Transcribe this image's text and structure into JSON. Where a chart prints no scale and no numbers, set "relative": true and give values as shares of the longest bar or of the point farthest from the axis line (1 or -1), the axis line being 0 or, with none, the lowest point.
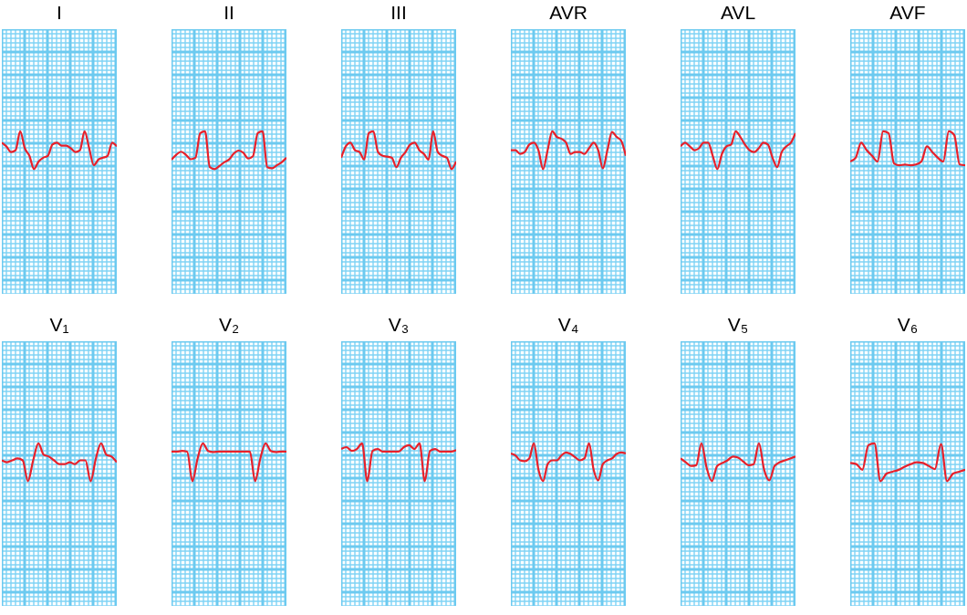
{
  "chart_data": [
    {
      "type": "line",
      "title": "I",
      "relative": true,
      "grid": true,
      "tick_labels": false,
      "categories": [
        null,
        null,
        null,
        null,
        null,
        null,
        null,
        null,
        null,
        null,
        null,
        null,
        null,
        null,
        null,
        null,
        null,
        null,
        null,
        null,
        null,
        null,
        null,
        null,
        null,
        null
      ],
      "series": [
        {
          "color": "#e8202a",
          "values": [
            0.7,
            0.6,
            0.45,
            0.5,
            1.0,
            0.55,
            0.35,
            0.0,
            0.2,
            0.3,
            0.35,
            0.65,
            0.7,
            0.62,
            0.62,
            0.55,
            0.45,
            0.5,
            1.0,
            0.55,
            0.1,
            0.25,
            0.3,
            0.35,
            0.7,
            0.6
          ]
        }
      ]
    },
    {
      "type": "line",
      "title": "II",
      "relative": true,
      "grid": true,
      "tick_labels": false,
      "categories": [
        null,
        null,
        null,
        null,
        null,
        null,
        null,
        null,
        null,
        null,
        null,
        null,
        null,
        null,
        null,
        null,
        null,
        null,
        null,
        null,
        null,
        null,
        null,
        null,
        null
      ],
      "series": [
        {
          "color": "#e8202a",
          "values": [
            0.25,
            0.38,
            0.46,
            0.38,
            0.26,
            0.3,
            0.95,
            1,
            0.05,
            0,
            0.08,
            0.18,
            0.25,
            0.41,
            0.49,
            0.43,
            0.28,
            0.34,
            0.95,
            1,
            0.05,
            0.02,
            0.1,
            0.18,
            0.3
          ]
        }
      ]
    },
    {
      "type": "line",
      "title": "III",
      "relative": true,
      "grid": true,
      "tick_labels": false,
      "categories": [
        null,
        null,
        null,
        null,
        null,
        null,
        null,
        null,
        null,
        null,
        null,
        null,
        null,
        null,
        null,
        null,
        null,
        null,
        null,
        null,
        null,
        null,
        null,
        null,
        null,
        null
      ],
      "series": [
        {
          "color": "#e8202a",
          "values": [
            0.3,
            0.6,
            0.7,
            0.5,
            0.45,
            0.25,
            0.95,
            1.0,
            0.45,
            0.35,
            0.33,
            0.3,
            0.05,
            0.3,
            0.45,
            0.65,
            0.7,
            0.5,
            0.4,
            0.25,
            1.0,
            0.45,
            0.35,
            0.3,
            0.0,
            0.2
          ]
        }
      ]
    },
    {
      "type": "line",
      "title": "AVR",
      "relative": true,
      "grid": true,
      "tick_labels": false,
      "categories": [
        null,
        null,
        null,
        null,
        null,
        null,
        null,
        null,
        null,
        null,
        null,
        null,
        null,
        null,
        null,
        null,
        null,
        null,
        null,
        null,
        null,
        null,
        null,
        null,
        null,
        null
      ],
      "series": [
        {
          "color": "#e8202a",
          "values": [
            0.5,
            0.5,
            0.4,
            0.45,
            0.65,
            0.7,
            0.5,
            0.0,
            0.5,
            1.0,
            0.85,
            0.8,
            0.7,
            0.4,
            0.45,
            0.45,
            0.4,
            0.55,
            0.7,
            0.5,
            0.02,
            0.5,
            0.98,
            0.85,
            0.75,
            0.35
          ]
        }
      ]
    },
    {
      "type": "line",
      "title": "AVL",
      "relative": true,
      "grid": true,
      "tick_labels": false,
      "categories": [
        null,
        null,
        null,
        null,
        null,
        null,
        null,
        null,
        null,
        null,
        null,
        null,
        null,
        null,
        null,
        null,
        null,
        null,
        null,
        null,
        null,
        null,
        null,
        null,
        null,
        null
      ],
      "series": [
        {
          "color": "#e8202a",
          "values": [
            0.6,
            0.7,
            0.6,
            0.5,
            0.55,
            0.7,
            0.7,
            0.35,
            0.0,
            0.4,
            0.6,
            0.65,
            1.0,
            0.85,
            0.65,
            0.5,
            0.45,
            0.55,
            0.7,
            0.65,
            0.3,
            0.05,
            0.45,
            0.6,
            0.7,
            0.95
          ]
        }
      ]
    },
    {
      "type": "line",
      "title": "AVF",
      "relative": true,
      "grid": true,
      "tick_labels": false,
      "categories": [
        null,
        null,
        null,
        null,
        null,
        null,
        null,
        null,
        null,
        null,
        null,
        null,
        null,
        null,
        null,
        null,
        null,
        null,
        null,
        null,
        null,
        null
      ],
      "series": [
        {
          "color": "#e8202a",
          "values": [
            0.2,
            0.3,
            0.7,
            0.5,
            0.35,
            0.2,
            1.0,
            0.95,
            0.15,
            0.1,
            0.12,
            0.1,
            0.12,
            0.2,
            0.6,
            0.45,
            0.3,
            0.2,
            1.0,
            0.9,
            0.12,
            0.1
          ]
        }
      ]
    },
    {
      "type": "line",
      "title": "V₁",
      "relative": true,
      "grid": true,
      "tick_labels": false,
      "categories": [
        null,
        null,
        null,
        null,
        null,
        null,
        null,
        null,
        null,
        null,
        null,
        null,
        null,
        null,
        null,
        null,
        null,
        null,
        null,
        null,
        null,
        null,
        null
      ],
      "series": [
        {
          "color": "#e8202a",
          "values": [
            0.55,
            0.5,
            0.55,
            0.6,
            0.55,
            0.0,
            0.55,
            1.0,
            0.7,
            0.65,
            0.55,
            0.45,
            0.45,
            0.5,
            0.45,
            0.55,
            0.55,
            0.0,
            0.6,
            1.0,
            0.7,
            0.65,
            0.5
          ]
        }
      ]
    },
    {
      "type": "line",
      "title": "V₂",
      "relative": true,
      "grid": true,
      "tick_labels": false,
      "categories": [
        null,
        null,
        null,
        null,
        null,
        null,
        null,
        null,
        null,
        null,
        null,
        null,
        null,
        null,
        null,
        null,
        null,
        null,
        null,
        null,
        null,
        null,
        null
      ],
      "series": [
        {
          "color": "#e8202a",
          "values": [
            0.78,
            0.78,
            0.8,
            0.78,
            0.0,
            0.6,
            1.0,
            0.8,
            0.77,
            0.78,
            0.78,
            0.78,
            0.78,
            0.78,
            0.78,
            0.78,
            0.0,
            0.6,
            1.0,
            0.8,
            0.77,
            0.78,
            0.78
          ]
        }
      ]
    },
    {
      "type": "line",
      "title": "V₃",
      "relative": true,
      "grid": true,
      "tick_labels": false,
      "categories": [
        null,
        null,
        null,
        null,
        null,
        null,
        null,
        null,
        null,
        null,
        null,
        null,
        null,
        null,
        null,
        null,
        null,
        null,
        null,
        null,
        null,
        null,
        null
      ],
      "series": [
        {
          "color": "#e8202a",
          "values": [
            0.85,
            0.9,
            0.8,
            0.85,
            1.0,
            0.0,
            0.8,
            0.85,
            0.78,
            0.78,
            0.78,
            0.78,
            0.9,
            0.95,
            0.85,
            1.0,
            0.0,
            0.8,
            0.85,
            0.78,
            0.78,
            0.78,
            0.82
          ]
        }
      ]
    },
    {
      "type": "line",
      "title": "V₄",
      "relative": true,
      "grid": true,
      "tick_labels": false,
      "categories": [
        null,
        null,
        null,
        null,
        null,
        null,
        null,
        null,
        null,
        null,
        null,
        null,
        null,
        null,
        null,
        null,
        null,
        null,
        null,
        null,
        null,
        null,
        null,
        null,
        null,
        null
      ],
      "series": [
        {
          "color": "#e8202a",
          "values": [
            0.73,
            0.68,
            0.55,
            0.53,
            0.6,
            1.0,
            0.3,
            0.0,
            0.45,
            0.55,
            0.55,
            0.68,
            0.76,
            0.72,
            0.63,
            0.55,
            0.6,
            1.0,
            0.3,
            0.02,
            0.45,
            0.55,
            0.6,
            0.72,
            0.76,
            0.73
          ]
        }
      ]
    },
    {
      "type": "line",
      "title": "V₅",
      "relative": true,
      "grid": true,
      "tick_labels": false,
      "categories": [
        null,
        null,
        null,
        null,
        null,
        null,
        null,
        null,
        null,
        null,
        null,
        null,
        null,
        null,
        null,
        null,
        null,
        null,
        null,
        null,
        null,
        null,
        null
      ],
      "series": [
        {
          "color": "#e8202a",
          "values": [
            0.6,
            0.5,
            0.4,
            0.42,
            1.0,
            0.35,
            0.0,
            0.4,
            0.48,
            0.55,
            0.65,
            0.62,
            0.52,
            0.42,
            0.45,
            1.0,
            0.3,
            0.02,
            0.4,
            0.5,
            0.55,
            0.6,
            0.65
          ]
        }
      ]
    },
    {
      "type": "line",
      "title": "V₆",
      "relative": true,
      "grid": true,
      "tick_labels": false,
      "categories": [
        null,
        null,
        null,
        null,
        null,
        null,
        null,
        null,
        null,
        null,
        null,
        null,
        null,
        null,
        null,
        null,
        null,
        null,
        null,
        null
      ],
      "series": [
        {
          "color": "#e8202a",
          "values": [
            0.48,
            0.45,
            0.3,
            0.95,
            1.0,
            0.0,
            0.2,
            0.25,
            0.3,
            0.38,
            0.45,
            0.5,
            0.48,
            0.4,
            0.32,
            0.98,
            0.0,
            0.2,
            0.25,
            0.3
          ]
        }
      ]
    }
  ]
}
